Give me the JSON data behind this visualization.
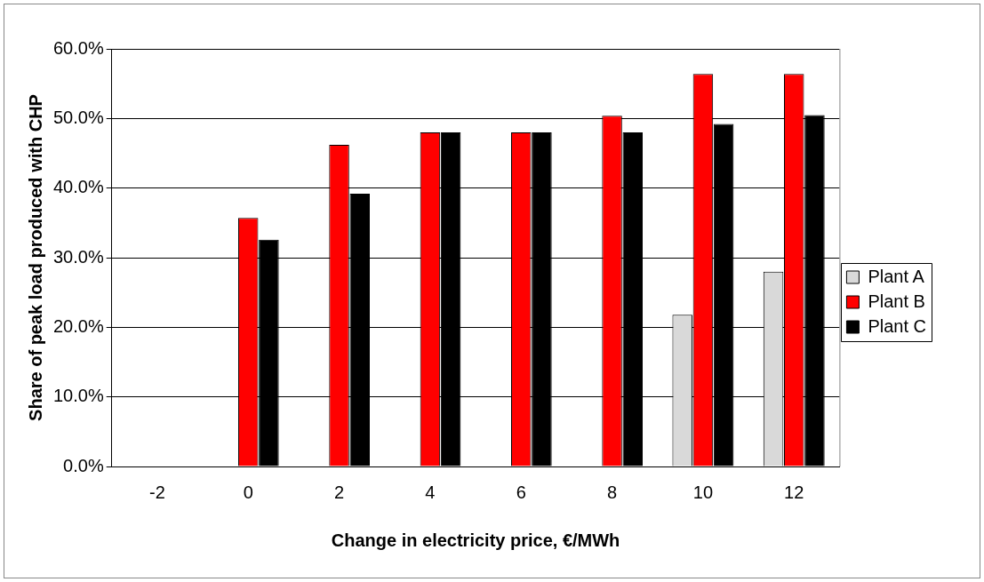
{
  "chart_data": {
    "type": "bar",
    "xlabel": "Change in electricity price, €/MWh",
    "ylabel": "Share of peak load produced with CHP",
    "categories": [
      "-2",
      "0",
      "2",
      "4",
      "6",
      "8",
      "10",
      "12"
    ],
    "series": [
      {
        "name": "Plant A",
        "color": "#d9d9d9",
        "values": [
          null,
          null,
          null,
          null,
          null,
          null,
          21.8,
          28.0
        ]
      },
      {
        "name": "Plant B",
        "color": "#ff0000",
        "values": [
          null,
          35.7,
          46.2,
          48.0,
          48.0,
          50.4,
          56.4,
          56.4
        ]
      },
      {
        "name": "Plant C",
        "color": "#000000",
        "values": [
          null,
          32.6,
          39.2,
          48.0,
          48.0,
          48.0,
          49.2,
          50.5
        ]
      }
    ],
    "ylim": [
      0,
      60
    ],
    "yticks": [
      {
        "value": 0,
        "label": "0.0%"
      },
      {
        "value": 10,
        "label": "10.0%"
      },
      {
        "value": 20,
        "label": "20.0%"
      },
      {
        "value": 30,
        "label": "30.0%"
      },
      {
        "value": 40,
        "label": "40.0%"
      },
      {
        "value": 50,
        "label": "50.0%"
      },
      {
        "value": 60,
        "label": "60.0%"
      }
    ],
    "grid": "y",
    "legend": "right"
  }
}
